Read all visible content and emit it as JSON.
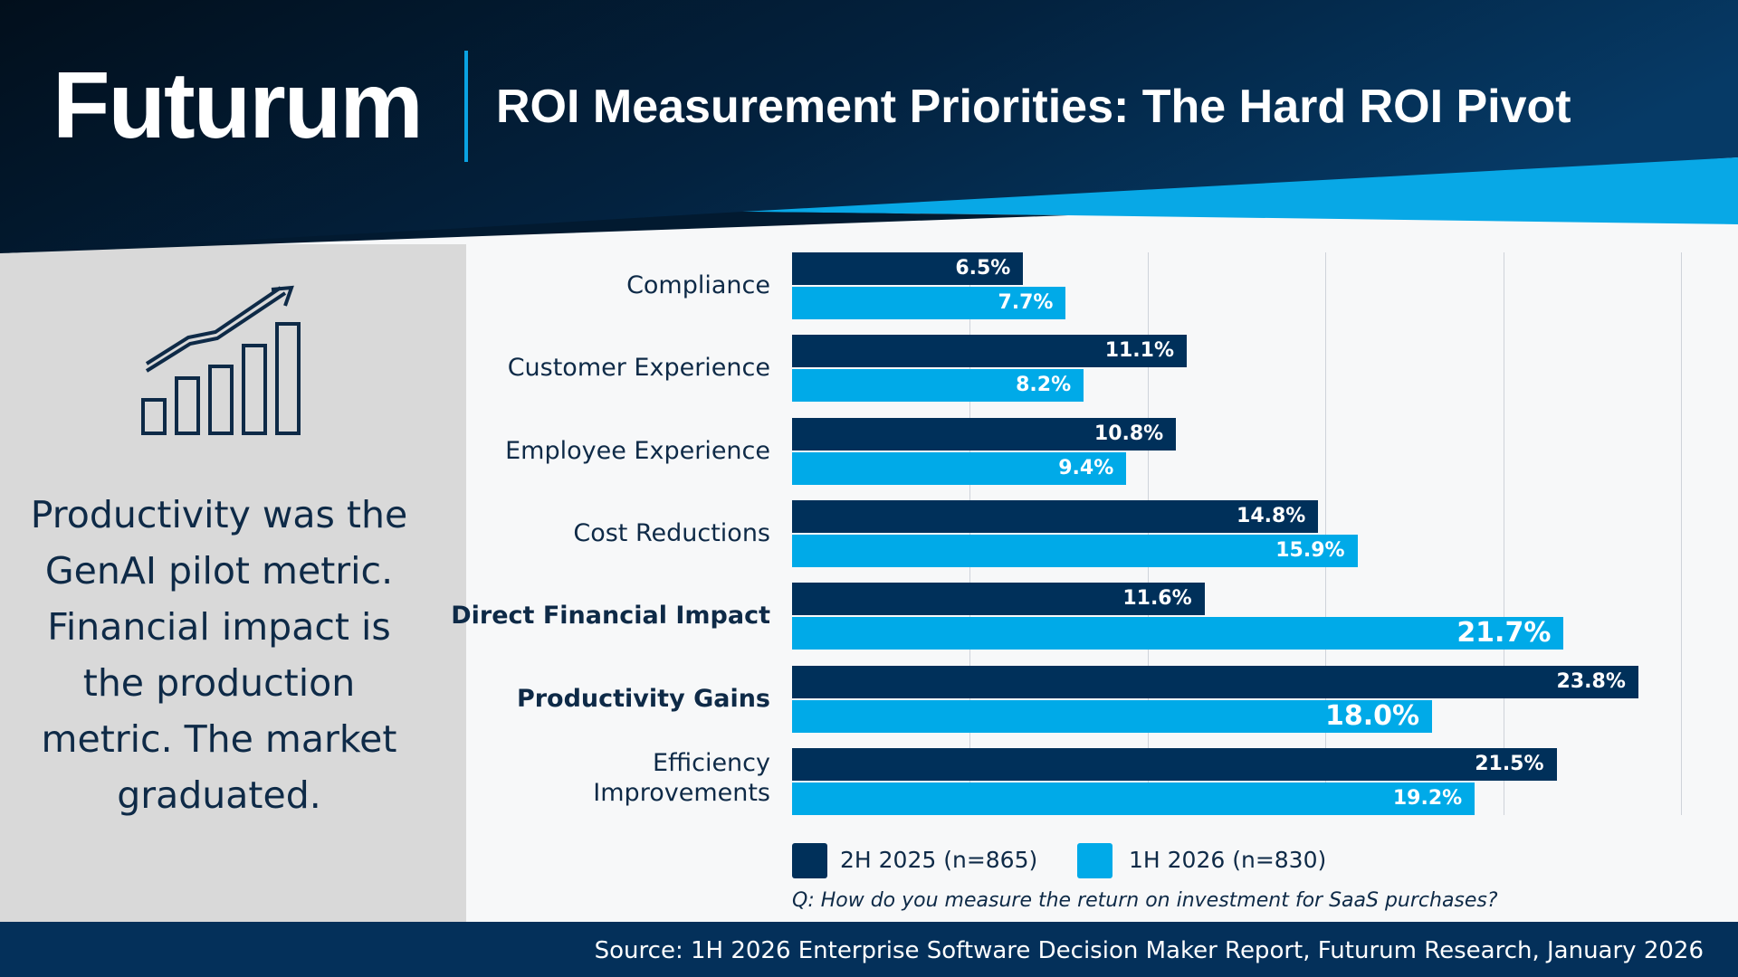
{
  "header": {
    "logo": "Futurum",
    "title": "ROI Measurement Priorities: The Hard ROI Pivot"
  },
  "left_panel": {
    "icon": "bar-growth-chart-icon",
    "text": "Productivity was the GenAI pilot metric. Financial impact is the production metric. The market graduated."
  },
  "chart_data": {
    "type": "bar",
    "orientation": "horizontal",
    "categories": [
      "Compliance",
      "Customer Experience",
      "Employee Experience",
      "Cost Reductions",
      "Direct Financial Impact",
      "Productivity Gains",
      "Efficiency Improvements"
    ],
    "highlighted": [
      "Direct Financial Impact",
      "Productivity Gains"
    ],
    "series": [
      {
        "name": "2H 2025 (n=865)",
        "color": "#00305a",
        "values": [
          6.5,
          11.1,
          10.8,
          14.8,
          11.6,
          23.8,
          21.5
        ],
        "labels": [
          "6.5%",
          "11.1%",
          "10.8%",
          "14.8%",
          "11.6%",
          "23.8%",
          "21.5%"
        ]
      },
      {
        "name": "1H 2026 (n=830)",
        "color": "#00aae8",
        "values": [
          7.7,
          8.2,
          9.4,
          15.9,
          21.7,
          18.0,
          19.2
        ],
        "labels": [
          "7.7%",
          "8.2%",
          "9.4%",
          "15.9%",
          "21.7%",
          "18.0%",
          "19.2%"
        ]
      }
    ],
    "emphasized_labels": [
      "21.7%",
      "18.0%"
    ],
    "xlim": [
      0,
      25
    ],
    "gridlines": [
      5,
      10,
      15,
      20,
      25
    ],
    "grid": true,
    "legend": "bottom-left",
    "question": "Q: How do you measure the return on investment for SaaS purchases?"
  },
  "footer": {
    "source": "Source: 1H 2026 Enterprise Software Decision Maker Report, Futurum Research, January 2026"
  }
}
